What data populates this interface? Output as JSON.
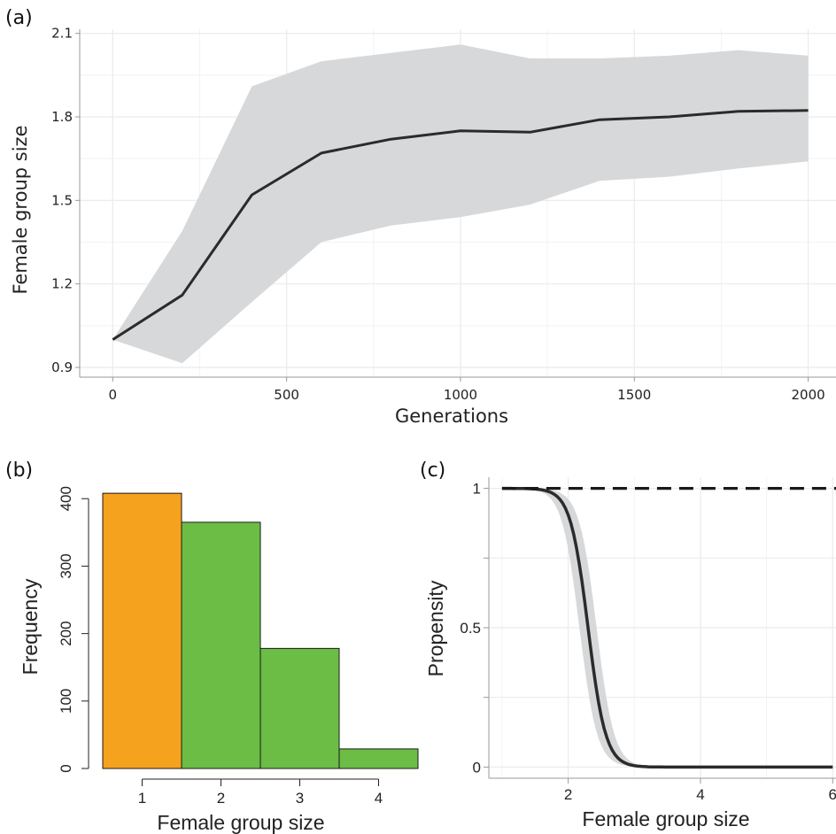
{
  "figure": {
    "panels": [
      {
        "label": "(a)"
      },
      {
        "label": "(b)"
      },
      {
        "label": "(c)"
      }
    ]
  },
  "chart_data": [
    {
      "panel": "(a)",
      "type": "line",
      "title": "",
      "xlabel": "Generations",
      "ylabel": "Female group size",
      "xlim": [
        -95,
        2080
      ],
      "ylim": [
        0.865,
        2.115
      ],
      "x_ticks": [
        0,
        500,
        1000,
        1500,
        2000
      ],
      "x_tick_labels": [
        "0",
        "500",
        "1000",
        "1500",
        "2000"
      ],
      "y_ticks": [
        0.9,
        1.2,
        1.5,
        1.8,
        2.1
      ],
      "y_tick_labels": [
        "0.9",
        "1.2",
        "1.5",
        "1.8",
        "2.1"
      ],
      "grid": true,
      "x": [
        0,
        200,
        400,
        600,
        800,
        1000,
        1200,
        1400,
        1600,
        1800,
        2000
      ],
      "series": [
        {
          "role": "mean",
          "values": [
            1.0,
            1.16,
            1.52,
            1.67,
            1.72,
            1.75,
            1.745,
            1.79,
            1.8,
            1.82,
            1.823
          ]
        },
        {
          "role": "band-upper",
          "values": [
            1.0,
            1.39,
            1.91,
            2.0,
            2.03,
            2.06,
            2.01,
            2.01,
            2.02,
            2.04,
            2.02
          ]
        },
        {
          "role": "band-lower",
          "values": [
            1.0,
            0.915,
            1.135,
            1.35,
            1.41,
            1.44,
            1.485,
            1.57,
            1.585,
            1.615,
            1.64
          ]
        }
      ],
      "colors": {
        "line": "#2b2b2b",
        "band": "#d7d8da",
        "grid": "#ebebeb",
        "axis": "#999999"
      }
    },
    {
      "panel": "(b)",
      "type": "bar",
      "title": "",
      "xlabel": "Female group size",
      "ylabel": "Frequency",
      "xlim": [
        0.5,
        4.5
      ],
      "ylim": [
        0,
        420
      ],
      "categories": [
        1,
        2,
        3,
        4
      ],
      "values": [
        408,
        365,
        178,
        29
      ],
      "x_ticks": [
        1,
        2,
        3,
        4
      ],
      "x_tick_labels": [
        "1",
        "2",
        "3",
        "4"
      ],
      "y_ticks": [
        0,
        100,
        200,
        300,
        400
      ],
      "y_tick_labels": [
        "0",
        "100",
        "200",
        "300",
        "400"
      ],
      "bar_colors": [
        "#f5a21e",
        "#6bbd45",
        "#6bbd45",
        "#6bbd45"
      ],
      "grid": false
    },
    {
      "panel": "(c)",
      "type": "line",
      "title": "",
      "xlabel": "Female group size",
      "ylabel": "Propensity",
      "xlim": [
        0.8,
        6.05
      ],
      "ylim": [
        -0.04,
        1.04
      ],
      "x_ticks": [
        2,
        4,
        6
      ],
      "x_tick_labels": [
        "2",
        "4",
        "6"
      ],
      "y_ticks": [
        0,
        0.25,
        0.5,
        0.75,
        1
      ],
      "y_tick_labels": [
        "0",
        "",
        "0.5",
        "",
        "1"
      ],
      "grid": true,
      "curve": {
        "form": "logistic",
        "x_start": 1,
        "x_end": 6,
        "midpoint": 2.3,
        "steepness": 7.5,
        "band_width": 0.13
      },
      "reference_line": {
        "y": 1,
        "style": "dashed"
      },
      "colors": {
        "line": "#2b2b2b",
        "band": "#d7d8da",
        "grid": "#ebebeb",
        "axis": "#999999"
      }
    }
  ]
}
